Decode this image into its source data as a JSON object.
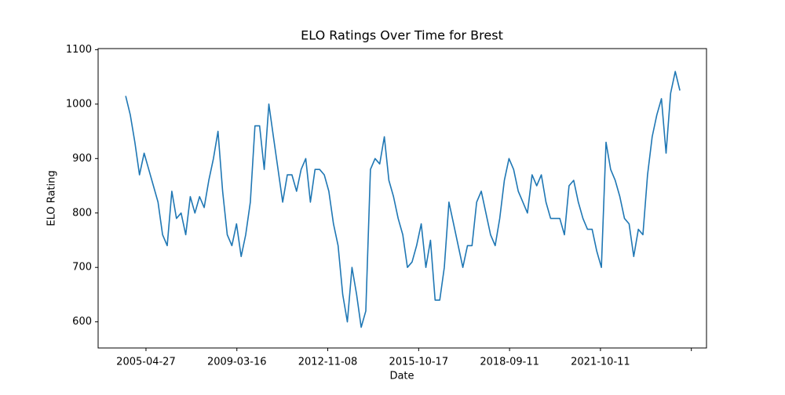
{
  "chart_data": {
    "type": "line",
    "title": "ELO Ratings Over Time for Brest",
    "x_label": "Date",
    "y_label": "ELO Rating",
    "x": [
      0,
      25,
      50,
      75,
      100,
      125,
      150,
      175,
      200,
      225,
      250,
      275,
      300,
      325,
      350,
      375,
      400,
      425,
      450,
      475,
      500,
      525,
      550,
      575,
      600,
      625,
      650,
      675,
      700,
      725,
      750,
      775,
      800,
      825,
      850,
      875,
      900,
      925,
      950,
      975,
      1000,
      1025,
      1050,
      1075,
      1100,
      1125,
      1150,
      1175,
      1200,
      1225,
      1250,
      1275,
      1300,
      1325,
      1350,
      1375,
      1400,
      1425,
      1450,
      1475,
      1500,
      1525,
      1550,
      1575,
      1600,
      1625,
      1650,
      1675,
      1700,
      1725,
      1750,
      1775,
      1800,
      1825,
      1850,
      1875,
      1900,
      1925,
      1950,
      1975,
      2000,
      2025,
      2050,
      2075,
      2100,
      2125,
      2150,
      2175,
      2200,
      2225,
      2250,
      2275,
      2300,
      2325,
      2350,
      2375,
      2400,
      2425,
      2450,
      2475,
      2500,
      2525,
      2550,
      2575,
      2600,
      2625,
      2650,
      2675,
      2700,
      2725,
      2750,
      2775,
      2800,
      2825,
      2850,
      2875,
      2900,
      2925,
      2950,
      2975,
      3000
    ],
    "series": [
      {
        "name": "Brest",
        "color": "#1f77b4",
        "values": [
          1015,
          980,
          930,
          870,
          910,
          880,
          850,
          820,
          760,
          740,
          840,
          790,
          800,
          760,
          830,
          800,
          830,
          810,
          860,
          900,
          950,
          840,
          760,
          740,
          780,
          720,
          760,
          820,
          960,
          960,
          880,
          1000,
          940,
          880,
          820,
          870,
          870,
          840,
          880,
          900,
          820,
          880,
          880,
          870,
          840,
          780,
          740,
          650,
          600,
          700,
          650,
          590,
          620,
          880,
          900,
          890,
          940,
          860,
          830,
          790,
          760,
          700,
          710,
          740,
          780,
          700,
          750,
          640,
          640,
          700,
          820,
          780,
          740,
          700,
          740,
          740,
          820,
          840,
          800,
          760,
          740,
          790,
          860,
          900,
          880,
          840,
          820,
          800,
          870,
          850,
          870,
          820,
          790,
          790,
          790,
          760,
          850,
          860,
          820,
          790,
          770,
          770,
          730,
          700,
          930,
          880,
          860,
          830,
          790,
          780,
          720,
          770,
          760,
          870,
          940,
          980,
          1010,
          910,
          1020,
          1060,
          1025
        ]
      }
    ],
    "xlim": [
      -149,
      3144
    ],
    "xticks": [
      {
        "value": 110,
        "label": "2005-04-27"
      },
      {
        "value": 602,
        "label": "2009-03-16"
      },
      {
        "value": 1094,
        "label": "2012-11-08"
      },
      {
        "value": 1586,
        "label": "2015-10-17"
      },
      {
        "value": 2078,
        "label": "2018-09-11"
      },
      {
        "value": 2570,
        "label": "2021-10-11"
      },
      {
        "value": 3062,
        "label": null
      }
    ],
    "ylim": [
      552,
      1102
    ],
    "yticks": [
      600,
      700,
      800,
      900,
      1000,
      1100
    ],
    "grid": false
  }
}
